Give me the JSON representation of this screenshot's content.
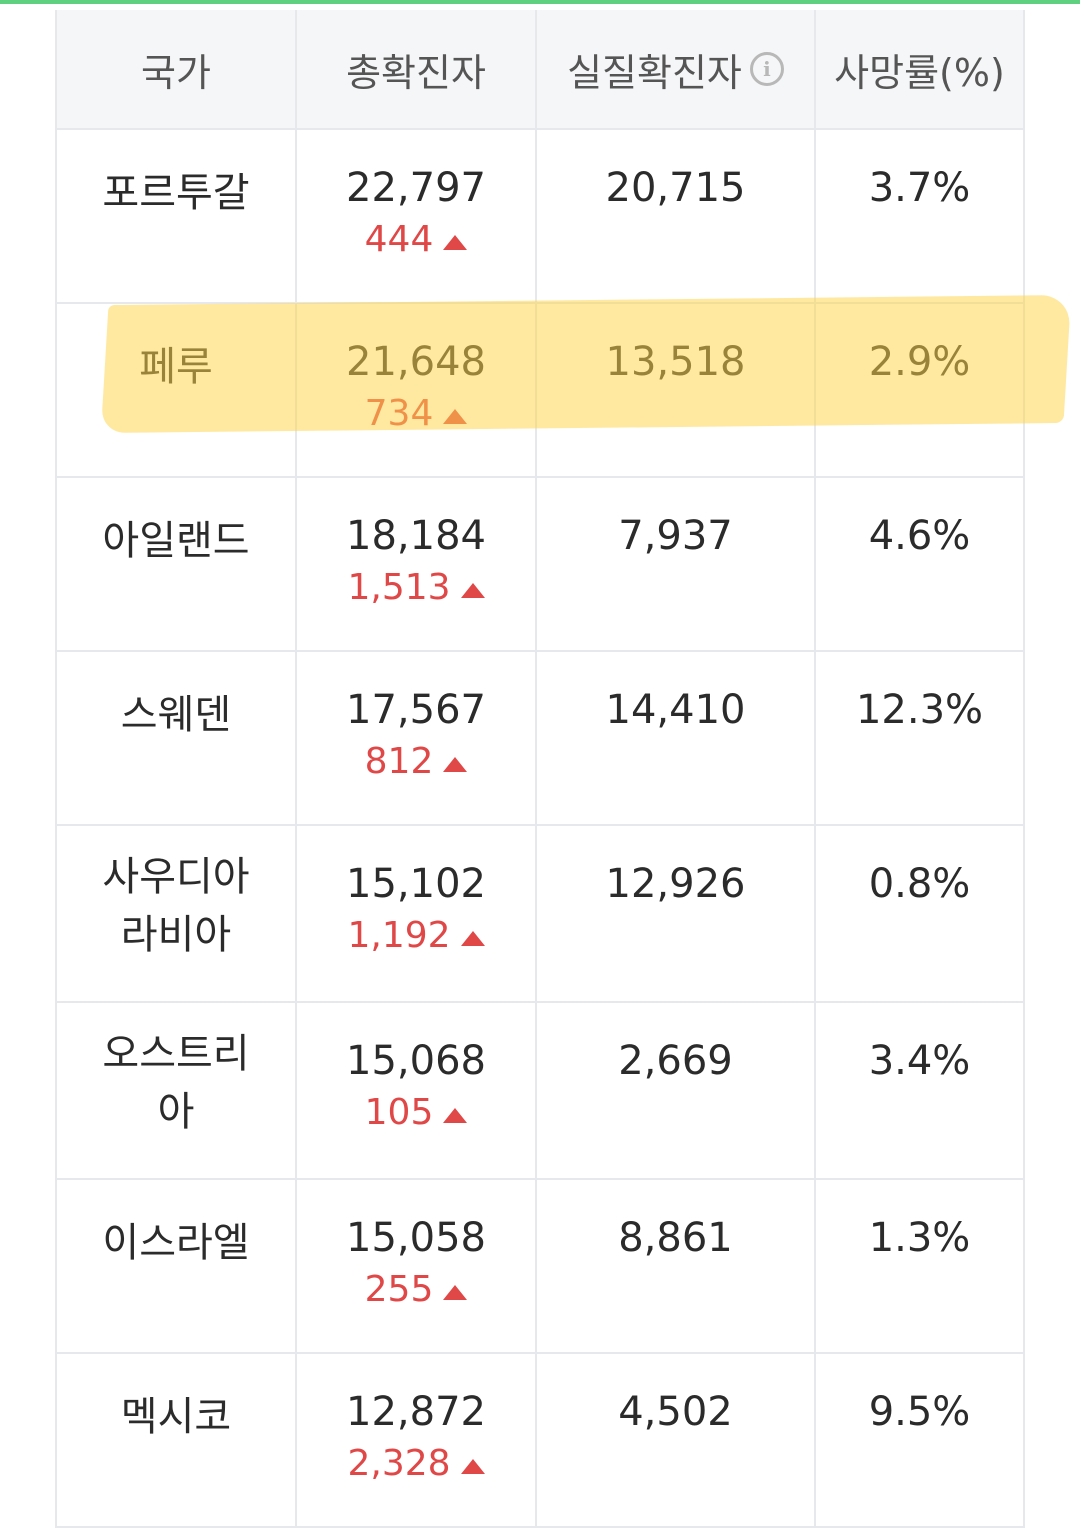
{
  "colors": {
    "accent_line": "#5fcf80",
    "delta_red": "#e04848",
    "highlight": "#ffd54a"
  },
  "header": {
    "country": "국가",
    "total": "총확진자",
    "active": "실질확진자",
    "info_icon": "i",
    "fatality": "사망률(%)"
  },
  "rows": [
    {
      "country": "포르투갈",
      "total": "22,797",
      "delta": "444",
      "active": "20,715",
      "fatality": "3.7%"
    },
    {
      "country": "페루",
      "total": "21,648",
      "delta": "734",
      "active": "13,518",
      "fatality": "2.9%"
    },
    {
      "country": "아일랜드",
      "total": "18,184",
      "delta": "1,513",
      "active": "7,937",
      "fatality": "4.6%"
    },
    {
      "country": "스웨덴",
      "total": "17,567",
      "delta": "812",
      "active": "14,410",
      "fatality": "12.3%"
    },
    {
      "country": "사우디아라비아",
      "total": "15,102",
      "delta": "1,192",
      "active": "12,926",
      "fatality": "0.8%"
    },
    {
      "country": "오스트리아",
      "total": "15,068",
      "delta": "105",
      "active": "2,669",
      "fatality": "3.4%"
    },
    {
      "country": "이스라엘",
      "total": "15,058",
      "delta": "255",
      "active": "8,861",
      "fatality": "1.3%"
    },
    {
      "country": "멕시코",
      "total": "12,872",
      "delta": "2,328",
      "active": "4,502",
      "fatality": "9.5%"
    }
  ]
}
